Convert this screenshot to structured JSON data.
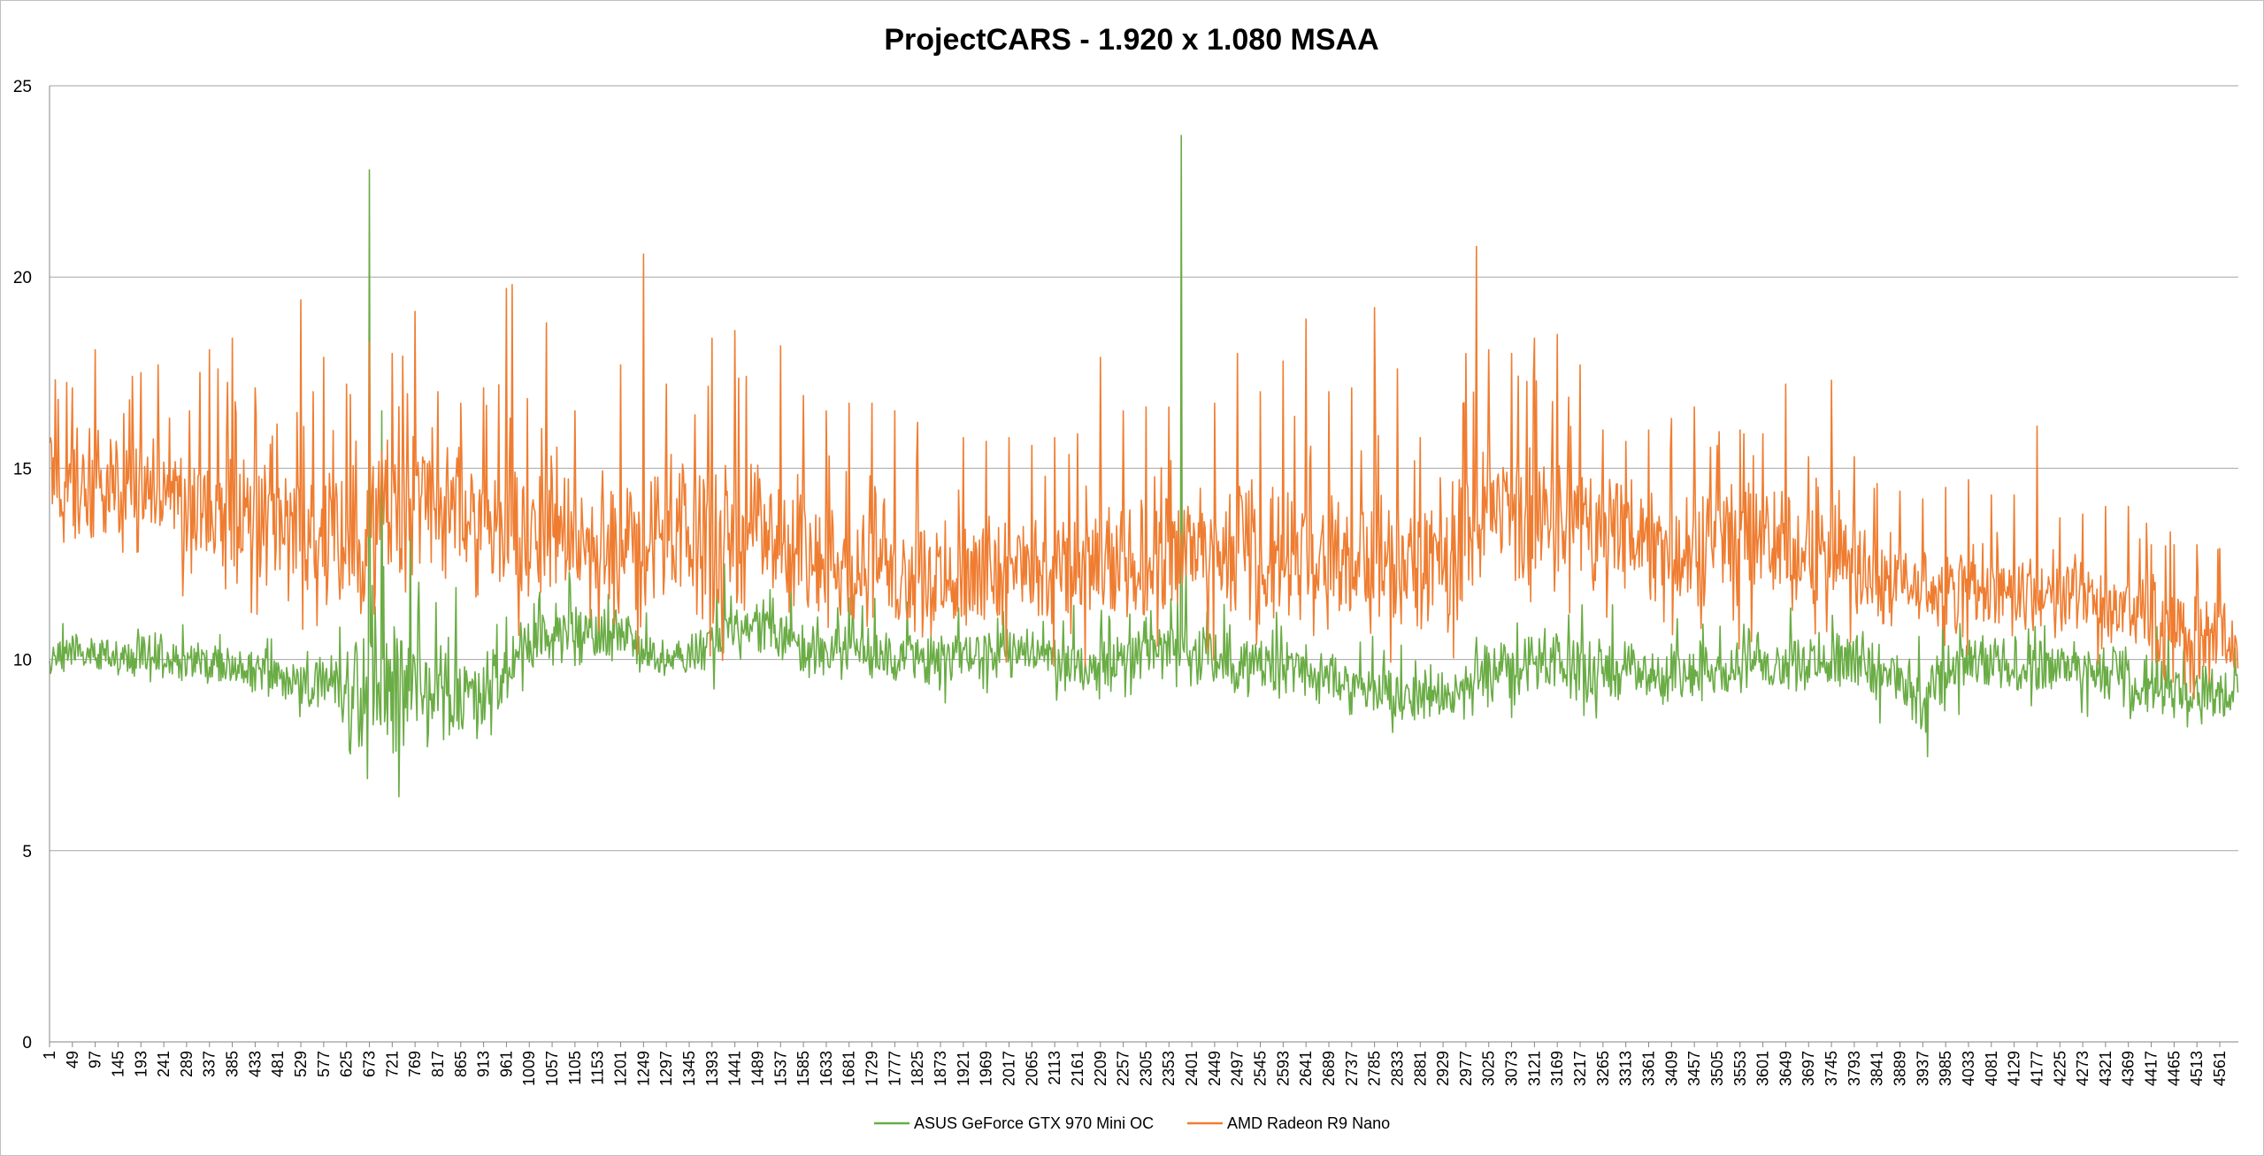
{
  "colors": {
    "series_0": "#6aac45",
    "series_1": "#ef7d31",
    "grid": "#a6a6a6",
    "axis": "#868686"
  },
  "chart_data": {
    "type": "line",
    "title": "ProjectCARS - 1.920 x 1.080 MSAA",
    "xlabel": "",
    "ylabel": "",
    "ylim": [
      0,
      25
    ],
    "yticks": [
      "0",
      "5",
      "10",
      "15",
      "20",
      "25"
    ],
    "x_range": [
      1,
      4600
    ],
    "x_tick_step": 48,
    "xticks": [
      "1",
      "49",
      "97",
      "145",
      "193",
      "241",
      "289",
      "337",
      "385",
      "433",
      "481",
      "529",
      "577",
      "625",
      "673",
      "721",
      "769",
      "817",
      "865",
      "913",
      "961",
      "1009",
      "1057",
      "1105",
      "1153",
      "1201",
      "1249",
      "1297",
      "1345",
      "1393",
      "1441",
      "1489",
      "1537",
      "1585",
      "1633",
      "1681",
      "1729",
      "1777",
      "1825",
      "1873",
      "1921",
      "1969",
      "2017",
      "2065",
      "2113",
      "2161",
      "2209",
      "2257",
      "2305",
      "2353",
      "2401",
      "2449",
      "2497",
      "2545",
      "2593",
      "2641",
      "2689",
      "2737",
      "2785",
      "2833",
      "2881",
      "2929",
      "2977",
      "3025",
      "3073",
      "3121",
      "3169",
      "3217",
      "3265",
      "3313",
      "3361",
      "3409",
      "3457",
      "3505",
      "3553",
      "3601",
      "3649",
      "3697",
      "3745",
      "3793",
      "3841",
      "3889",
      "3937",
      "3985",
      "4033",
      "4081",
      "4129",
      "4177",
      "4225",
      "4273",
      "4321",
      "4369",
      "4417",
      "4465",
      "4513",
      "4561"
    ],
    "grid": true,
    "legend": "bottom",
    "series": [
      {
        "name": "ASUS GeForce GTX 970 Mini OC",
        "x": [
          1,
          100,
          200,
          300,
          400,
          500,
          600,
          673,
          700,
          800,
          900,
          961,
          1000,
          1100,
          1200,
          1300,
          1400,
          1500,
          1600,
          1700,
          1800,
          1900,
          2000,
          2100,
          2200,
          2300,
          2380,
          2400,
          2500,
          2600,
          2700,
          2800,
          2881,
          2950,
          3000,
          3100,
          3200,
          3300,
          3400,
          3500,
          3600,
          3700,
          3800,
          3900,
          3937,
          4000,
          4100,
          4200,
          4300,
          4400,
          4500,
          4600
        ],
        "values": [
          10.1,
          10.2,
          10.0,
          9.9,
          9.7,
          9.5,
          9.3,
          9.2,
          9.2,
          9.1,
          9.1,
          9.6,
          10.4,
          10.7,
          10.8,
          9.8,
          10.5,
          10.8,
          10.3,
          10.2,
          10.1,
          10.0,
          10.2,
          10.0,
          9.8,
          10.2,
          10.4,
          10.3,
          9.8,
          9.8,
          9.5,
          9.2,
          8.9,
          9.0,
          9.7,
          9.8,
          9.8,
          9.8,
          9.6,
          9.8,
          9.9,
          10.0,
          10.0,
          9.3,
          8.9,
          9.8,
          9.9,
          9.8,
          9.7,
          9.4,
          9.1,
          9.1
        ],
        "variation": [
          0.35,
          0.4,
          0.4,
          0.4,
          0.45,
          0.6,
          0.7,
          1.4,
          1.4,
          1.2,
          1.0,
          0.6,
          0.6,
          0.7,
          0.6,
          0.5,
          0.6,
          0.6,
          0.6,
          0.6,
          0.6,
          0.55,
          0.55,
          0.6,
          0.6,
          0.55,
          0.6,
          0.6,
          0.6,
          0.6,
          0.6,
          0.55,
          0.5,
          0.6,
          0.65,
          0.65,
          0.65,
          0.65,
          0.65,
          0.65,
          0.6,
          0.6,
          0.65,
          0.7,
          0.8,
          0.65,
          0.6,
          0.6,
          0.6,
          0.6,
          0.6,
          0.6
        ],
        "peaks": [
          [
            673,
            22.8
          ],
          [
            2380,
            23.7
          ],
          [
            700,
            16.5
          ],
          [
            760,
            14.0
          ],
          [
            1420,
            12.5
          ],
          [
            2390,
            12.4
          ]
        ]
      },
      {
        "name": "AMD Radeon R9 Nano",
        "x": [
          1,
          100,
          200,
          300,
          400,
          500,
          600,
          673,
          700,
          800,
          900,
          961,
          1000,
          1100,
          1200,
          1300,
          1400,
          1500,
          1600,
          1700,
          1800,
          1900,
          2000,
          2100,
          2200,
          2300,
          2380,
          2400,
          2500,
          2600,
          2700,
          2800,
          2881,
          2950,
          3000,
          3100,
          3200,
          3300,
          3400,
          3500,
          3600,
          3700,
          3800,
          3900,
          3937,
          4000,
          4100,
          4200,
          4300,
          4400,
          4500,
          4600
        ],
        "values": [
          14.6,
          14.5,
          14.2,
          14.0,
          13.8,
          13.5,
          13.2,
          13.0,
          13.8,
          14.2,
          13.8,
          13.5,
          13.3,
          13.0,
          13.0,
          13.0,
          13.2,
          13.5,
          12.8,
          12.5,
          12.3,
          12.2,
          12.3,
          12.3,
          12.3,
          12.6,
          12.8,
          12.8,
          12.8,
          12.8,
          12.6,
          12.7,
          12.3,
          12.8,
          14.0,
          13.6,
          13.5,
          13.4,
          13.0,
          13.0,
          13.0,
          12.8,
          12.4,
          12.0,
          11.9,
          11.8,
          11.7,
          11.7,
          11.5,
          11.0,
          10.6,
          10.6
        ],
        "variation": [
          1.2,
          1.3,
          1.3,
          1.4,
          1.4,
          1.4,
          1.5,
          1.6,
          1.7,
          1.6,
          1.5,
          1.5,
          1.4,
          1.4,
          1.4,
          1.5,
          1.6,
          1.6,
          1.5,
          1.4,
          1.3,
          1.2,
          1.2,
          1.2,
          1.3,
          1.3,
          1.4,
          1.4,
          1.4,
          1.4,
          1.4,
          1.4,
          1.3,
          1.5,
          1.6,
          1.5,
          1.5,
          1.4,
          1.3,
          1.3,
          1.3,
          1.2,
          1.1,
          0.9,
          0.9,
          0.8,
          0.8,
          0.8,
          0.9,
          1.0,
          1.0,
          1.0
        ],
        "peaks": [
          [
            20,
            16.8
          ],
          [
            49,
            17.1
          ],
          [
            97,
            18.1
          ],
          [
            175,
            17.4
          ],
          [
            193,
            17.5
          ],
          [
            230,
            17.7
          ],
          [
            337,
            18.1
          ],
          [
            355,
            17.6
          ],
          [
            385,
            18.4
          ],
          [
            433,
            17.1
          ],
          [
            529,
            19.4
          ],
          [
            556,
            17.0
          ],
          [
            577,
            17.9
          ],
          [
            625,
            17.2
          ],
          [
            673,
            18.3
          ],
          [
            721,
            18.0
          ],
          [
            769,
            19.1
          ],
          [
            817,
            17.0
          ],
          [
            865,
            16.7
          ],
          [
            913,
            17.1
          ],
          [
            961,
            19.7
          ],
          [
            973,
            19.8
          ],
          [
            1045,
            18.8
          ],
          [
            1105,
            16.5
          ],
          [
            1201,
            17.7
          ],
          [
            1249,
            20.6
          ],
          [
            1297,
            17.2
          ],
          [
            1393,
            18.4
          ],
          [
            1441,
            18.6
          ],
          [
            1465,
            17.4
          ],
          [
            1537,
            18.2
          ],
          [
            1585,
            16.9
          ],
          [
            1633,
            16.5
          ],
          [
            1681,
            16.7
          ],
          [
            1729,
            16.7
          ],
          [
            1777,
            16.5
          ],
          [
            1825,
            16.2
          ],
          [
            1921,
            15.8
          ],
          [
            1969,
            15.7
          ],
          [
            2017,
            15.8
          ],
          [
            2065,
            15.6
          ],
          [
            2113,
            15.8
          ],
          [
            2161,
            15.9
          ],
          [
            2209,
            17.9
          ],
          [
            2257,
            16.5
          ],
          [
            2305,
            16.6
          ],
          [
            2353,
            16.6
          ],
          [
            2449,
            16.7
          ],
          [
            2497,
            18.0
          ],
          [
            2545,
            17.0
          ],
          [
            2593,
            17.8
          ],
          [
            2641,
            18.9
          ],
          [
            2689,
            17.0
          ],
          [
            2737,
            17.1
          ],
          [
            2785,
            19.2
          ],
          [
            2833,
            17.6
          ],
          [
            2881,
            15.8
          ],
          [
            2977,
            18.0
          ],
          [
            3000,
            20.8
          ],
          [
            3025,
            18.1
          ],
          [
            3073,
            18.0
          ],
          [
            3121,
            18.4
          ],
          [
            3169,
            18.5
          ],
          [
            3217,
            17.7
          ],
          [
            3265,
            16.0
          ],
          [
            3313,
            15.7
          ],
          [
            3361,
            16.0
          ],
          [
            3409,
            16.3
          ],
          [
            3457,
            16.6
          ],
          [
            3505,
            15.6
          ],
          [
            3553,
            16.0
          ],
          [
            3601,
            15.9
          ],
          [
            3649,
            17.2
          ],
          [
            3697,
            15.3
          ],
          [
            3745,
            17.3
          ],
          [
            3793,
            15.3
          ],
          [
            3841,
            14.6
          ],
          [
            3889,
            14.4
          ],
          [
            3937,
            14.2
          ],
          [
            3985,
            14.5
          ],
          [
            4033,
            14.7
          ],
          [
            4081,
            14.3
          ],
          [
            4129,
            14.3
          ],
          [
            4177,
            16.1
          ],
          [
            4225,
            13.7
          ],
          [
            4273,
            13.8
          ],
          [
            4321,
            14.0
          ],
          [
            4369,
            14.0
          ],
          [
            4417,
            13.0
          ],
          [
            4465,
            13.0
          ],
          [
            4513,
            13.0
          ],
          [
            4561,
            12.9
          ]
        ]
      }
    ]
  }
}
